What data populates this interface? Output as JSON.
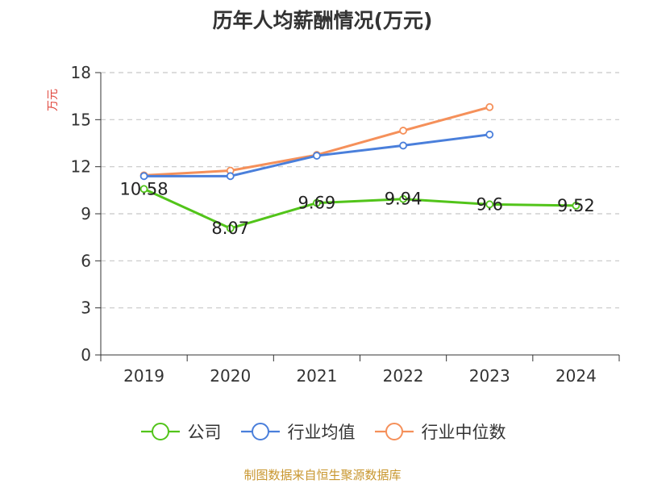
{
  "source": "制图数据来自恒生聚源数据库",
  "chart_data": {
    "type": "line",
    "title": "历年人均薪酬情况(万元)",
    "ylabel": "万元",
    "categories": [
      "2019",
      "2020",
      "2021",
      "2022",
      "2023",
      "2024"
    ],
    "ylim": [
      0,
      18
    ],
    "yticks": [
      0,
      3,
      6,
      9,
      12,
      15,
      18
    ],
    "grid": true,
    "legend_position": "bottom",
    "series": [
      {
        "name": "公司",
        "color": "#52c41a",
        "values": [
          10.58,
          8.07,
          9.69,
          9.94,
          9.6,
          9.52
        ],
        "labels": [
          "10.58",
          "8.07",
          "9.69",
          "9.94",
          "9.6",
          "9.52"
        ]
      },
      {
        "name": "行业均值",
        "color": "#4a7fdb",
        "values": [
          11.4,
          11.4,
          12.7,
          13.35,
          14.05,
          null
        ]
      },
      {
        "name": "行业中位数",
        "color": "#f5905a",
        "values": [
          11.45,
          11.75,
          12.75,
          14.3,
          15.8,
          null
        ]
      }
    ]
  }
}
